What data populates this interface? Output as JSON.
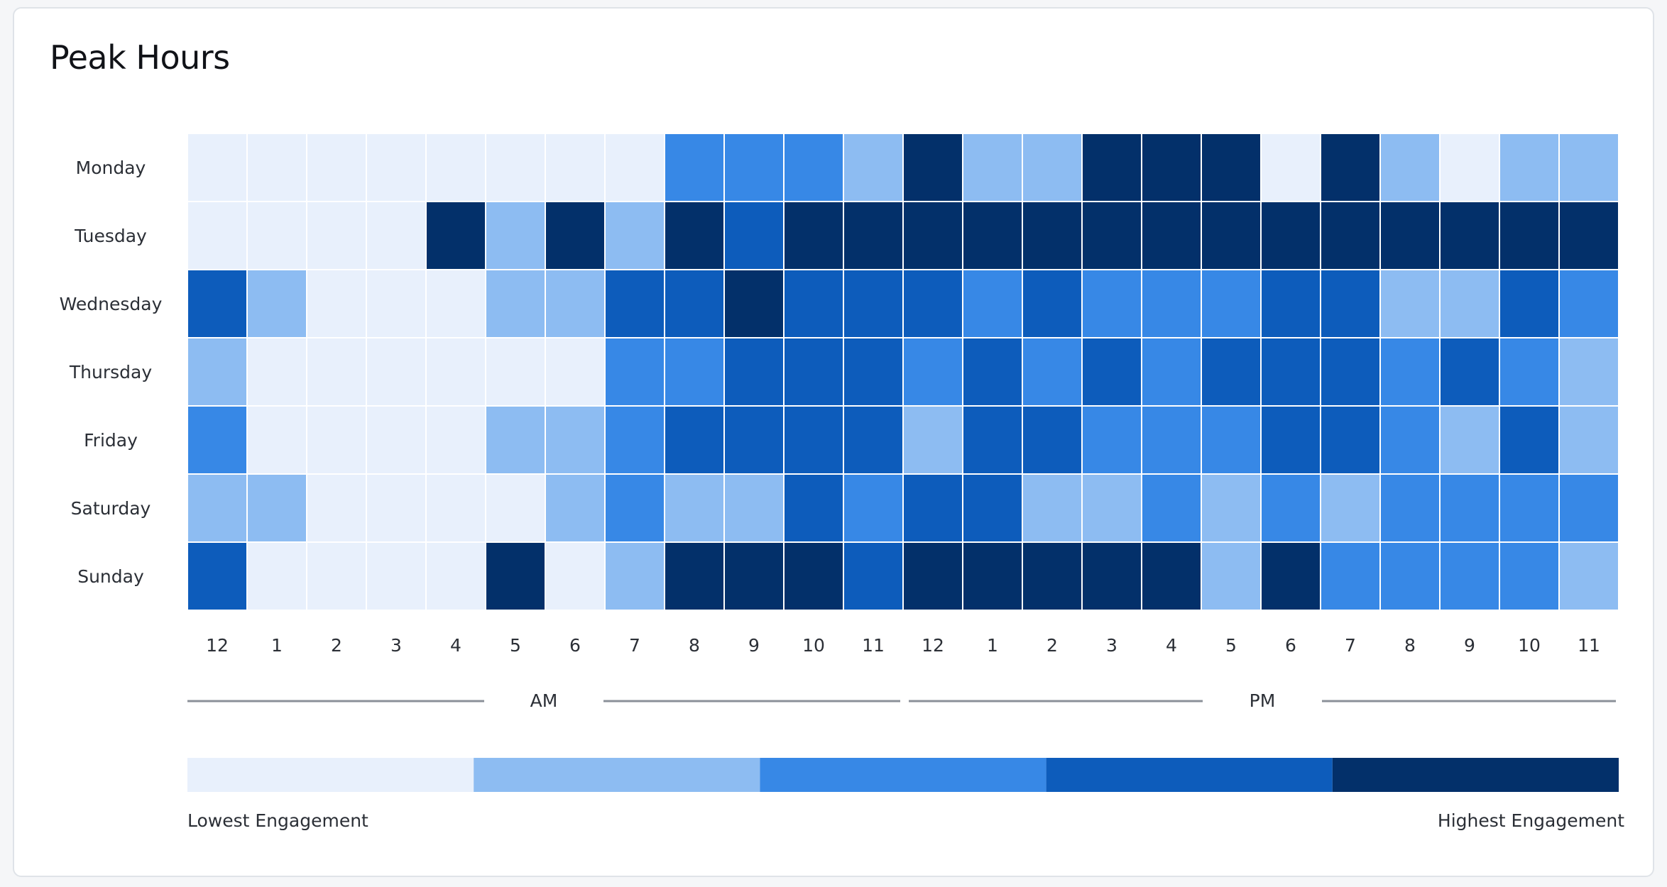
{
  "card": {
    "title": "Peak Hours"
  },
  "colors": {
    "levels": [
      "#e8f0fc",
      "#8dbcf2",
      "#3788e6",
      "#0d5cbb",
      "#03306a"
    ]
  },
  "chart_data": {
    "type": "heatmap",
    "title": "Peak Hours",
    "rows": [
      "Monday",
      "Tuesday",
      "Wednesday",
      "Thursday",
      "Friday",
      "Saturday",
      "Sunday"
    ],
    "columns": [
      "12",
      "1",
      "2",
      "3",
      "4",
      "5",
      "6",
      "7",
      "8",
      "9",
      "10",
      "11",
      "12",
      "1",
      "2",
      "3",
      "4",
      "5",
      "6",
      "7",
      "8",
      "9",
      "10",
      "11"
    ],
    "periods": [
      {
        "label": "AM",
        "from": 0,
        "to": 11
      },
      {
        "label": "PM",
        "from": 12,
        "to": 23
      }
    ],
    "scale": {
      "min": 0,
      "max": 4,
      "levels": 5
    },
    "values": [
      [
        0,
        0,
        0,
        0,
        0,
        0,
        0,
        0,
        2,
        2,
        2,
        1,
        4,
        1,
        1,
        4,
        4,
        4,
        0,
        4,
        1,
        0,
        1,
        1
      ],
      [
        0,
        0,
        0,
        0,
        4,
        1,
        4,
        1,
        4,
        3,
        4,
        4,
        4,
        4,
        4,
        4,
        4,
        4,
        4,
        4,
        4,
        4,
        4,
        4
      ],
      [
        3,
        1,
        0,
        0,
        0,
        1,
        1,
        3,
        3,
        4,
        3,
        3,
        3,
        2,
        3,
        2,
        2,
        2,
        3,
        3,
        1,
        1,
        3,
        2
      ],
      [
        1,
        0,
        0,
        0,
        0,
        0,
        0,
        2,
        2,
        3,
        3,
        3,
        2,
        3,
        2,
        3,
        2,
        3,
        3,
        3,
        2,
        3,
        2,
        1
      ],
      [
        2,
        0,
        0,
        0,
        0,
        1,
        1,
        2,
        3,
        3,
        3,
        3,
        1,
        3,
        3,
        2,
        2,
        2,
        3,
        3,
        2,
        1,
        3,
        1
      ],
      [
        1,
        1,
        0,
        0,
        0,
        0,
        1,
        2,
        1,
        1,
        3,
        2,
        3,
        3,
        1,
        1,
        2,
        1,
        2,
        1,
        2,
        2,
        2,
        2
      ],
      [
        3,
        0,
        0,
        0,
        0,
        4,
        0,
        1,
        4,
        4,
        4,
        3,
        4,
        4,
        4,
        4,
        4,
        1,
        4,
        2,
        2,
        2,
        2,
        1
      ]
    ],
    "legend": {
      "low_label": "Lowest Engagement",
      "high_label": "Highest Engagement"
    }
  }
}
